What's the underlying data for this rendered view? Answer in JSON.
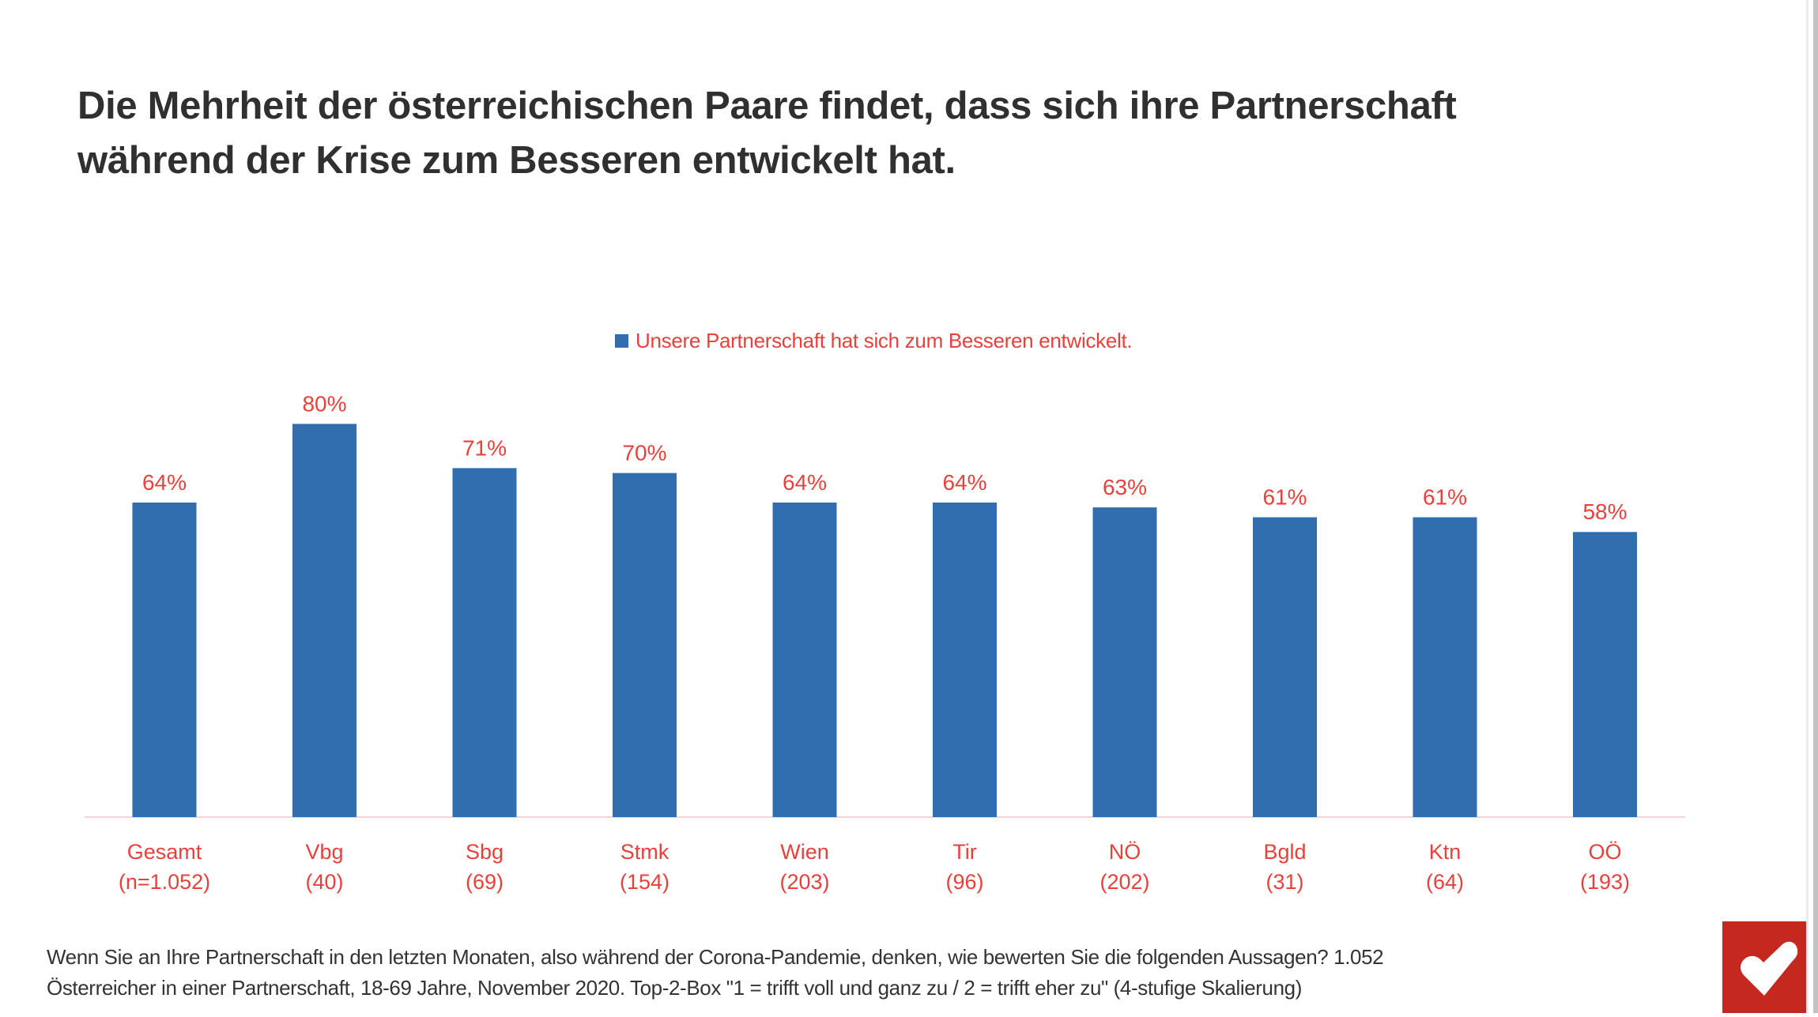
{
  "title": {
    "line1": "Die Mehrheit der österreichischen Paare findet, dass sich ihre Partnerschaft",
    "line2": "während der Krise zum Besseren entwickelt hat."
  },
  "chart_data": {
    "type": "bar",
    "legend": "Unsere Partnerschaft hat sich zum Besseren entwickelt.",
    "legend_position": "top",
    "categories": [
      "Gesamt",
      "Vbg",
      "Sbg",
      "Stmk",
      "Wien",
      "Tir",
      "NÖ",
      "Bgld",
      "Ktn",
      "OÖ"
    ],
    "sample_sizes": [
      "(n=1.052)",
      "(40)",
      "(69)",
      "(154)",
      "(203)",
      "(96)",
      "(202)",
      "(31)",
      "(64)",
      "(193)"
    ],
    "values": [
      64,
      80,
      71,
      70,
      64,
      64,
      63,
      61,
      61,
      58
    ],
    "value_labels": [
      "64%",
      "80%",
      "71%",
      "70%",
      "64%",
      "64%",
      "63%",
      "61%",
      "61%",
      "58%"
    ],
    "unit": "%",
    "ylim": [
      0,
      100
    ],
    "grid": false,
    "colors": {
      "bar": "#306EAF",
      "labels": "#E8413C",
      "axis": "#F4D4D4"
    }
  },
  "footer": {
    "line1": "Wenn Sie an Ihre Partnerschaft in den letzten Monaten, also während der Corona-Pandemie, denken, wie bewerten Sie die folgenden Aussagen? 1.052",
    "line2": "Österreicher in einer Partnerschaft, 18-69 Jahre, November 2020. Top-2-Box \"1 = trifft voll und ganz zu / 2 = trifft eher zu\" (4-stufige Skalierung)"
  },
  "logo": {
    "icon": "heart-icon",
    "color": "#C4281E"
  }
}
